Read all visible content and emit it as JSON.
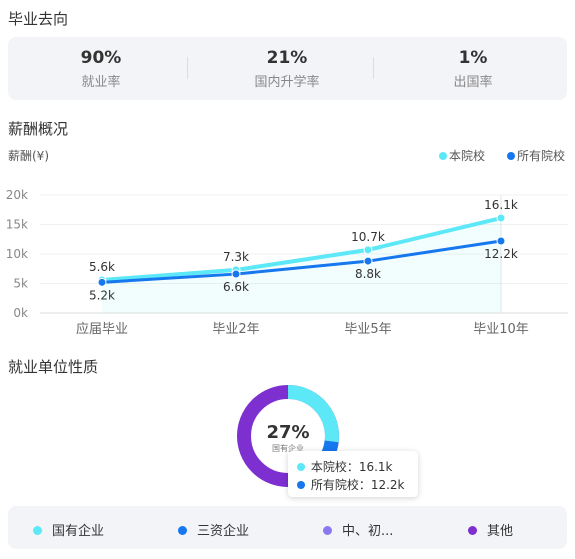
{
  "employment": {
    "title": "毕业去向",
    "stats": [
      {
        "value": "90%",
        "label": "就业率"
      },
      {
        "value": "21%",
        "label": "国内升学率"
      },
      {
        "value": "1%",
        "label": "出国率"
      }
    ]
  },
  "salary": {
    "title": "薪酬概况",
    "unit_label": "薪酬(¥)",
    "legend": [
      "本院校",
      "所有院校"
    ],
    "colors": {
      "this_school": "#5ce8f7",
      "all_schools": "#1677ee"
    }
  },
  "chart_data": {
    "type": "line",
    "x": [
      "应届毕业",
      "毕业2年",
      "毕业5年",
      "毕业10年"
    ],
    "ylim": [
      0,
      20
    ],
    "yticks": [
      "0k",
      "5k",
      "10k",
      "15k",
      "20k"
    ],
    "series": [
      {
        "name": "本院校",
        "values": [
          5.6,
          7.3,
          10.7,
          16.1
        ],
        "labels": [
          "5.6k",
          "7.3k",
          "10.7k",
          "16.1k"
        ]
      },
      {
        "name": "所有院校",
        "values": [
          5.2,
          6.6,
          8.8,
          12.2
        ],
        "labels": [
          "5.2k",
          "6.6k",
          "8.8k",
          "12.2k"
        ]
      }
    ],
    "grid": true,
    "legend_position": "top-right"
  },
  "units": {
    "title": "就业单位性质",
    "center_value": "27%",
    "center_label": "国有企业",
    "tooltip": [
      {
        "label": "本院校：16.1k",
        "color": "#5ce8f7"
      },
      {
        "label": "所有院校：12.2k",
        "color": "#1677ee"
      }
    ],
    "legend": [
      {
        "label": "国有企业",
        "color": "#5ce8f7"
      },
      {
        "label": "三资企业",
        "color": "#1677ee"
      },
      {
        "label": "中、初...",
        "color": "#8b78f0"
      },
      {
        "label": "其他",
        "color": "#7d2fd0"
      }
    ]
  }
}
